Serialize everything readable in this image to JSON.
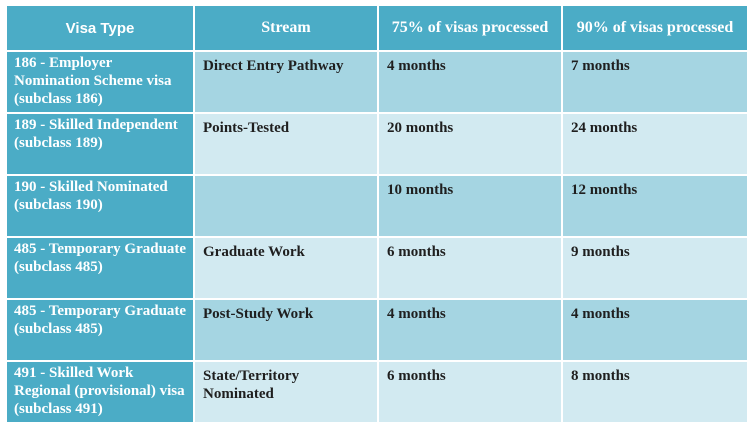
{
  "table": {
    "headers": {
      "visa_type": "Visa Type",
      "stream": "Stream",
      "p75": "75% of visas processed",
      "p90": "90% of visas processed"
    },
    "rows": [
      {
        "visa": "186 - Employer Nomination Scheme visa (subclass 186)",
        "stream": "Direct Entry Pathway",
        "p75": "4 months",
        "p90": "7 months"
      },
      {
        "visa": "189 - Skilled Independent (subclass 189)",
        "stream": "Points-Tested",
        "p75": "20 months",
        "p90": "24 months"
      },
      {
        "visa": "190 - Skilled Nominated (subclass 190)",
        "stream": "",
        "p75": "10 months",
        "p90": "12 months"
      },
      {
        "visa": "485 - Temporary Graduate (subclass 485)",
        "stream": "Graduate Work",
        "p75": "6 months",
        "p90": "9 months"
      },
      {
        "visa": "485 - Temporary Graduate (subclass 485)",
        "stream": "Post-Study Work",
        "p75": "4 months",
        "p90": "4 months"
      },
      {
        "visa": "491 - Skilled Work Regional (provisional) visa (subclass 491)",
        "stream": "State/Territory Nominated",
        "p75": "6 months",
        "p90": "8 months"
      }
    ]
  }
}
